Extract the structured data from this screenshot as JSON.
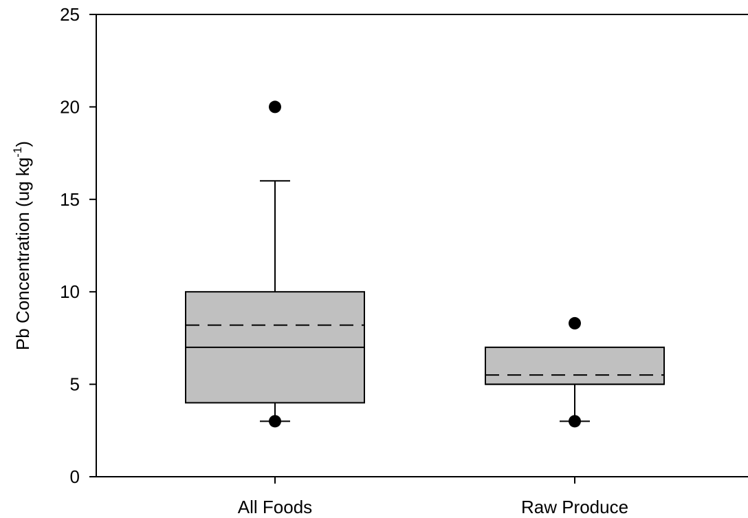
{
  "chart_data": {
    "type": "box",
    "ylabel": {
      "main": "Pb Concentration (ug kg",
      "superscript": "-1",
      "close": ")"
    },
    "ylim": [
      0,
      25
    ],
    "yticks": [
      0,
      5,
      10,
      15,
      20,
      25
    ],
    "grid": false,
    "categories": [
      "All Foods",
      "Raw Produce"
    ],
    "series": [
      {
        "category": "All Foods",
        "q1": 4,
        "median": 7,
        "mean": 8.2,
        "q3": 10,
        "whisker_low": 3,
        "whisker_high": 16,
        "outliers": [
          20,
          3
        ]
      },
      {
        "category": "Raw Produce",
        "q1": 5,
        "median": 5,
        "mean": 5.5,
        "q3": 7,
        "whisker_low": 3,
        "whisker_high": 7,
        "outliers": [
          8.3,
          3
        ]
      }
    ],
    "colors": {
      "box_fill": "#c0c0c0",
      "stroke": "#000000"
    }
  }
}
